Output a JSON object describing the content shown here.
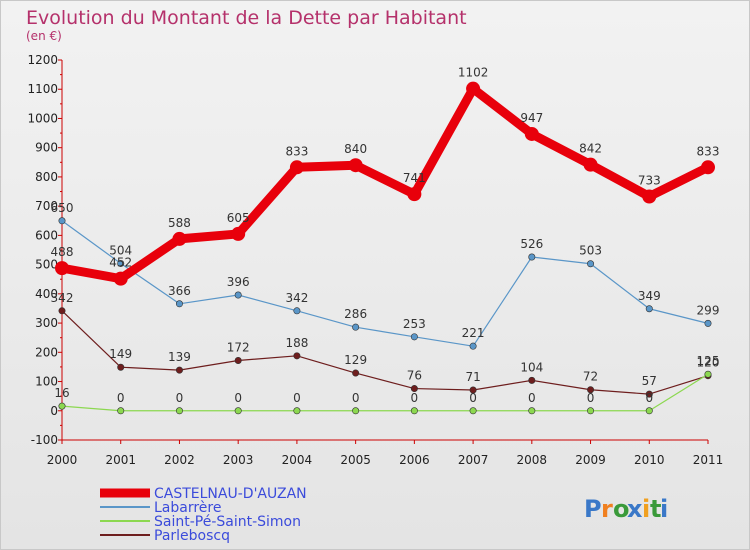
{
  "chart_data": {
    "type": "line",
    "title": "Evolution du Montant de la Dette par Habitant",
    "subtitle": "(en €)",
    "x": [
      "2000",
      "2001",
      "2002",
      "2003",
      "2004",
      "2005",
      "2006",
      "2007",
      "2008",
      "2009",
      "2010",
      "2011"
    ],
    "ylim": [
      -100,
      1200
    ],
    "yticks": [
      -100,
      0,
      100,
      200,
      300,
      400,
      500,
      600,
      700,
      800,
      900,
      1000,
      1100,
      1200
    ],
    "grid": false,
    "legend_position": "bottom-left",
    "series": [
      {
        "name": "CASTELNAU-D'AUZAN",
        "color": "#e8000b",
        "values": [
          488,
          452,
          588,
          605,
          833,
          840,
          741,
          1102,
          947,
          842,
          733,
          833
        ],
        "labels": [
          "488",
          "452",
          "588",
          "605",
          "833",
          "840",
          "741",
          "1102",
          "947",
          "842",
          "733",
          "833"
        ]
      },
      {
        "name": "Labarrère",
        "color": "#5a96c8",
        "values": [
          650,
          504,
          366,
          396,
          342,
          286,
          253,
          221,
          526,
          503,
          349,
          299
        ],
        "labels": [
          "650",
          "504",
          "366",
          "396",
          "342",
          "286",
          "253",
          "221",
          "526",
          "503",
          "349",
          "299"
        ]
      },
      {
        "name": "Saint-Pé-Saint-Simon",
        "color": "#8cd850",
        "values": [
          16,
          0,
          0,
          0,
          0,
          0,
          0,
          0,
          0,
          0,
          0,
          125
        ],
        "labels": [
          "16",
          "0",
          "0",
          "0",
          "0",
          "0",
          "0",
          "0",
          "0",
          "0",
          "0",
          "125"
        ]
      },
      {
        "name": "Parleboscq",
        "color": "#6e1e1e",
        "values": [
          342,
          149,
          139,
          172,
          188,
          129,
          76,
          71,
          104,
          72,
          57,
          120
        ],
        "labels": [
          "342",
          "149",
          "139",
          "172",
          "188",
          "129",
          "76",
          "71",
          "104",
          "72",
          "57",
          "120"
        ]
      }
    ]
  },
  "branding": {
    "logo_text": "Proxiti",
    "logo_letters": [
      "P",
      "r",
      "o",
      "x",
      "i",
      "t",
      "i"
    ],
    "logo_colors": [
      "#3a78c8",
      "#f08020",
      "#3a9a3a",
      "#3a78c8",
      "#f0a020",
      "#3a9a3a",
      "#3a78c8"
    ]
  }
}
